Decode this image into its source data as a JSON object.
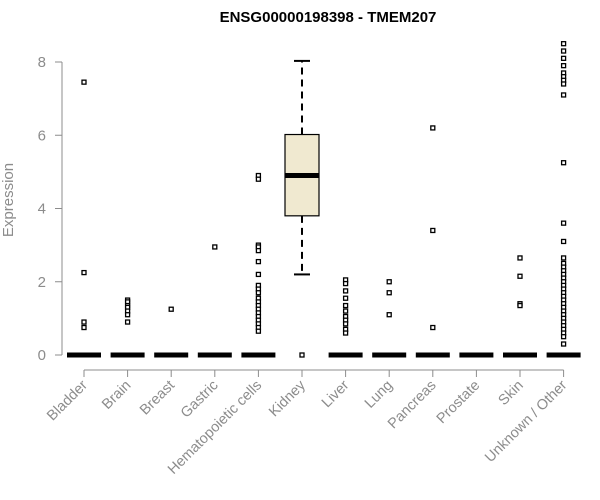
{
  "chart_data": {
    "type": "box",
    "title": "ENSG00000198398 - TMEM207",
    "xlabel": "",
    "ylabel": "Expression",
    "ylim": [
      0,
      8.5
    ],
    "yticks": [
      0,
      2,
      4,
      6,
      8
    ],
    "box_fill": "#f0e9d0",
    "categories": [
      "Bladder",
      "Brain",
      "Breast",
      "Gastric",
      "Hematopoietic cells",
      "Kidney",
      "Liver",
      "Lung",
      "Pancreas",
      "Prostate",
      "Skin",
      "Unknown / Other"
    ],
    "boxes": [
      {
        "category": "Bladder",
        "q1": 0,
        "median": 0,
        "q3": 0,
        "whisker_low": 0,
        "whisker_high": 0,
        "outliers": [
          7.45,
          2.25,
          0.9,
          0.75
        ]
      },
      {
        "category": "Brain",
        "q1": 0,
        "median": 0,
        "q3": 0,
        "whisker_low": 0,
        "whisker_high": 0,
        "outliers": [
          1.5,
          1.45,
          1.35,
          1.3,
          1.2,
          1.1,
          0.9
        ]
      },
      {
        "category": "Breast",
        "q1": 0,
        "median": 0,
        "q3": 0,
        "whisker_low": 0,
        "whisker_high": 0,
        "outliers": [
          1.25
        ]
      },
      {
        "category": "Gastric",
        "q1": 0,
        "median": 0,
        "q3": 0,
        "whisker_low": 0,
        "whisker_high": 0,
        "outliers": [
          2.95
        ]
      },
      {
        "category": "Hematopoietic cells",
        "q1": 0,
        "median": 0,
        "q3": 0,
        "whisker_low": 0,
        "whisker_high": 0,
        "outliers": [
          4.9,
          4.8,
          3.0,
          2.95,
          2.85,
          2.55,
          2.2,
          1.9,
          1.8,
          1.7,
          1.55,
          1.45,
          1.35,
          1.25,
          1.15,
          1.05,
          0.95,
          0.85,
          0.75,
          0.65
        ]
      },
      {
        "category": "Kidney",
        "q1": 3.8,
        "median": 4.9,
        "q3": 6.02,
        "whisker_low": 2.2,
        "whisker_high": 8.03,
        "outliers": [
          0
        ]
      },
      {
        "category": "Liver",
        "q1": 0,
        "median": 0,
        "q3": 0,
        "whisker_low": 0,
        "whisker_high": 0,
        "outliers": [
          2.05,
          1.95,
          1.75,
          1.55,
          1.35,
          1.2,
          1.05,
          0.95,
          0.85,
          0.7,
          0.6
        ]
      },
      {
        "category": "Lung",
        "q1": 0,
        "median": 0,
        "q3": 0,
        "whisker_low": 0,
        "whisker_high": 0,
        "outliers": [
          2.0,
          1.7,
          1.1
        ]
      },
      {
        "category": "Pancreas",
        "q1": 0,
        "median": 0,
        "q3": 0,
        "whisker_low": 0,
        "whisker_high": 0,
        "outliers": [
          6.2,
          3.4,
          0.75
        ]
      },
      {
        "category": "Prostate",
        "q1": 0,
        "median": 0,
        "q3": 0,
        "whisker_low": 0,
        "whisker_high": 0,
        "outliers": []
      },
      {
        "category": "Skin",
        "q1": 0,
        "median": 0,
        "q3": 0,
        "whisker_low": 0,
        "whisker_high": 0,
        "outliers": [
          2.65,
          2.15,
          1.4,
          1.35
        ]
      },
      {
        "category": "Unknown / Other",
        "q1": 0,
        "median": 0,
        "q3": 0,
        "whisker_low": 0,
        "whisker_high": 0,
        "outliers": [
          8.5,
          8.3,
          8.1,
          7.9,
          7.7,
          7.6,
          7.5,
          7.4,
          7.1,
          5.25,
          3.6,
          3.1,
          2.65,
          2.5,
          2.4,
          2.3,
          2.2,
          2.1,
          2.0,
          1.9,
          1.8,
          1.7,
          1.6,
          1.5,
          1.4,
          1.3,
          1.2,
          1.1,
          1.0,
          0.9,
          0.8,
          0.7,
          0.6,
          0.5,
          0.3
        ]
      }
    ]
  }
}
